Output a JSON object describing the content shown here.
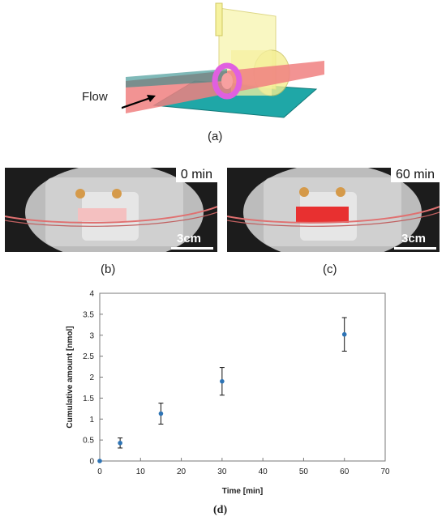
{
  "panel_a": {
    "flow_label": "Flow",
    "caption": "(a)"
  },
  "panel_b": {
    "time": "0 min",
    "scale": "3cm",
    "caption": "(b)"
  },
  "panel_c": {
    "time": "60 min",
    "scale": "3cm",
    "caption": "(c)"
  },
  "panel_d": {
    "caption": "(d)"
  },
  "chart_data": {
    "type": "scatter",
    "x": [
      0,
      5,
      15,
      30,
      60
    ],
    "y": [
      0,
      0.43,
      1.13,
      1.9,
      3.02
    ],
    "error": [
      0,
      0.12,
      0.25,
      0.33,
      0.4
    ],
    "xlabel": "Time [min]",
    "ylabel": "Cumulative amount [nmol]",
    "xlim": [
      0,
      70
    ],
    "ylim": [
      0,
      4
    ],
    "xticks": [
      "0",
      "10",
      "20",
      "30",
      "40",
      "50",
      "60",
      "70"
    ],
    "yticks": [
      "0",
      "0.5",
      "1",
      "1.5",
      "2",
      "2.5",
      "3",
      "3.5",
      "4"
    ],
    "grid": false,
    "marker_color": "#2e74b5"
  },
  "colors": {
    "tube": "#f08080",
    "plate": "#1fa7a7",
    "ring": "#e060e0",
    "housing": "#f0ee90"
  }
}
